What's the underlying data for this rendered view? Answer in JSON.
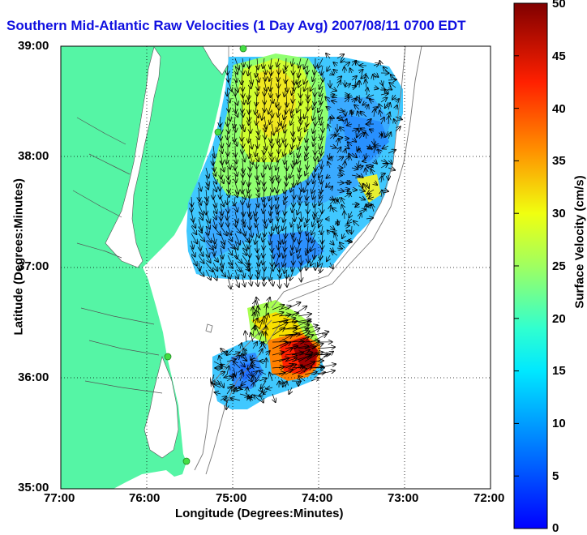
{
  "title": "Southern Mid-Atlantic Raw Velocities (1 Day Avg) 2007/08/11 0700 EDT",
  "xlabel": "Longitude (Degrees:Minutes)",
  "ylabel": "Latitude (Degrees:Minutes)",
  "colorbar": {
    "label": "Surface Velocity (cm/s)",
    "range": [
      0,
      50
    ],
    "ticks": [
      "0",
      "5",
      "10",
      "15",
      "20",
      "25",
      "30",
      "35",
      "40",
      "45",
      "50"
    ],
    "colormap": "jet"
  },
  "x_ticks": [
    "77:00",
    "76:00",
    "75:00",
    "74:00",
    "73:00",
    "72:00"
  ],
  "y_ticks": [
    "39:00",
    "38:00",
    "37:00",
    "36:00",
    "35:00"
  ],
  "colors": {
    "land": "#55f5a5",
    "title": "#1010e0",
    "station": "#44dd44"
  },
  "chart_data": {
    "type": "heatmap",
    "title": "Southern Mid-Atlantic Raw Velocities (1 Day Avg) 2007/08/11 0700 EDT",
    "xlabel": "Longitude (Degrees:Minutes)",
    "ylabel": "Latitude (Degrees:Minutes)",
    "xlim": [
      "77:00 W",
      "72:00 W"
    ],
    "ylim": [
      "35:00 N",
      "39:00 N"
    ],
    "grid": true,
    "colorbar_label": "Surface Velocity (cm/s)",
    "colorbar_range": [
      0,
      50
    ],
    "regions": [
      {
        "area": "northern shelf near 38:30N 74:45W",
        "approx_speed_cm_s": 24
      },
      {
        "area": "central shelf near 37:45N 75:00W",
        "approx_speed_cm_s": 13
      },
      {
        "area": "offshore near 38:15N 73:45W",
        "approx_speed_cm_s": 8
      },
      {
        "area": "near 37:15N 74:45W",
        "approx_speed_cm_s": 6
      },
      {
        "area": "Cape Hatteras near 36:15N 74:15W",
        "approx_speed_cm_s": 46
      },
      {
        "area": "south of Hatteras near 36:00N 74:45W",
        "approx_speed_cm_s": 7
      },
      {
        "area": "near 36:30N 74:45W",
        "approx_speed_cm_s": 25
      }
    ],
    "stations": [
      {
        "lon": "74:51W",
        "lat": "38:56N"
      },
      {
        "lon": "75:09W",
        "lat": "38:13N"
      },
      {
        "lon": "75:48W",
        "lat": "36:10N"
      },
      {
        "lon": "75:29W",
        "lat": "35:15N"
      }
    ]
  }
}
